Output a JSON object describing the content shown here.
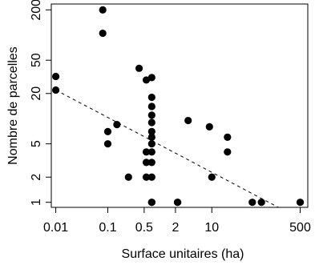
{
  "chart_data": {
    "type": "scatter",
    "title": "",
    "xlabel": "Surface unitaires (ha)",
    "ylabel": "Nombre de parcelles",
    "x_scale": "log",
    "y_scale": "log",
    "xlim": [
      0.0082,
      700
    ],
    "ylim": [
      0.87,
      235
    ],
    "x_ticks": [
      {
        "value": 0.01,
        "label": "0.01"
      },
      {
        "value": 0.1,
        "label": "0.1"
      },
      {
        "value": 0.5,
        "label": "0.5"
      },
      {
        "value": 2,
        "label": "2"
      },
      {
        "value": 10,
        "label": "10"
      },
      {
        "value": 500,
        "label": "500"
      }
    ],
    "y_ticks": [
      {
        "value": 1,
        "label": "1"
      },
      {
        "value": 2,
        "label": "2"
      },
      {
        "value": 5,
        "label": "5"
      },
      {
        "value": 20,
        "label": "20"
      },
      {
        "value": 50,
        "label": "50"
      },
      {
        "value": 200,
        "label": "200"
      }
    ],
    "grid": false,
    "legend": "none",
    "points": [
      {
        "x": 0.01,
        "y": 32
      },
      {
        "x": 0.01,
        "y": 22
      },
      {
        "x": 0.08,
        "y": 200
      },
      {
        "x": 0.08,
        "y": 105
      },
      {
        "x": 0.1,
        "y": 7
      },
      {
        "x": 0.1,
        "y": 5
      },
      {
        "x": 0.15,
        "y": 8.5
      },
      {
        "x": 0.25,
        "y": 2
      },
      {
        "x": 0.4,
        "y": 40
      },
      {
        "x": 0.55,
        "y": 29
      },
      {
        "x": 0.55,
        "y": 4
      },
      {
        "x": 0.55,
        "y": 3
      },
      {
        "x": 0.55,
        "y": 2
      },
      {
        "x": 0.7,
        "y": 31
      },
      {
        "x": 0.7,
        "y": 18
      },
      {
        "x": 0.7,
        "y": 14
      },
      {
        "x": 0.7,
        "y": 11
      },
      {
        "x": 0.7,
        "y": 9
      },
      {
        "x": 0.7,
        "y": 7
      },
      {
        "x": 0.7,
        "y": 6
      },
      {
        "x": 0.7,
        "y": 5
      },
      {
        "x": 0.7,
        "y": 4
      },
      {
        "x": 0.7,
        "y": 3
      },
      {
        "x": 0.7,
        "y": 2
      },
      {
        "x": 0.7,
        "y": 1
      },
      {
        "x": 0.7,
        "y": 1
      },
      {
        "x": 2.2,
        "y": 1
      },
      {
        "x": 2.2,
        "y": 1
      },
      {
        "x": 3.5,
        "y": 9.5
      },
      {
        "x": 9,
        "y": 8
      },
      {
        "x": 10,
        "y": 2
      },
      {
        "x": 20,
        "y": 6
      },
      {
        "x": 20,
        "y": 4
      },
      {
        "x": 60,
        "y": 1
      },
      {
        "x": 90,
        "y": 1
      },
      {
        "x": 500,
        "y": 1
      }
    ],
    "trend_line": {
      "style": "dashed",
      "from": {
        "x": 0.01,
        "y": 22
      },
      "to": {
        "x": 190,
        "y": 0.87
      }
    }
  }
}
